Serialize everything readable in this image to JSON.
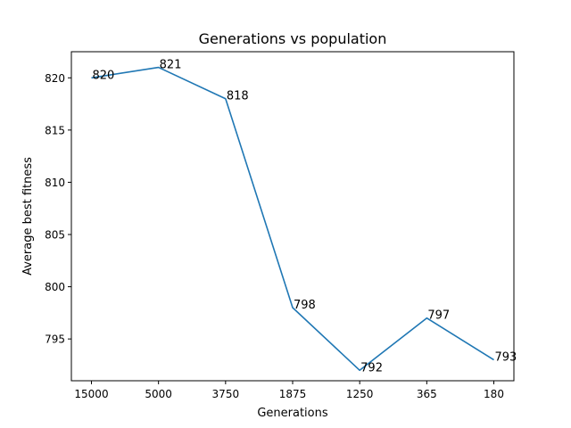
{
  "chart_data": {
    "type": "line",
    "title": "Generations vs population",
    "xlabel": "Generations",
    "ylabel": "Average best fitness",
    "categories": [
      "15000",
      "5000",
      "3750",
      "1875",
      "1250",
      "365",
      "180"
    ],
    "series": [
      {
        "values": [
          820,
          821,
          818,
          798,
          792,
          797,
          793
        ]
      }
    ],
    "data_labels": [
      "820",
      "821",
      "818",
      "798",
      "792",
      "797",
      "793"
    ],
    "ylim": [
      791,
      822.5
    ],
    "yticks": [
      795,
      800,
      805,
      810,
      815,
      820
    ],
    "ytick_labels": [
      "795",
      "800",
      "805",
      "810",
      "815",
      "820"
    ],
    "grid": false,
    "line_color": "#1f77b4"
  }
}
